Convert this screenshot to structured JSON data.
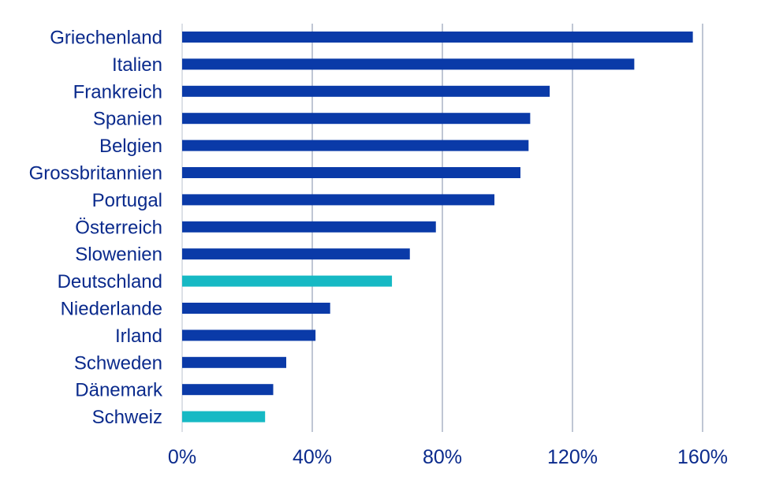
{
  "chart_data": {
    "type": "bar",
    "orientation": "horizontal",
    "title": "",
    "xlabel": "",
    "ylabel": "",
    "categories": [
      "Griechenland",
      "Italien",
      "Frankreich",
      "Spanien",
      "Belgien",
      "Grossbritannien",
      "Portugal",
      "Österreich",
      "Slowenien",
      "Deutschland",
      "Niederlande",
      "Irland",
      "Schweden",
      "Dänemark",
      "Schweiz"
    ],
    "values": [
      157,
      139,
      113,
      107,
      106.5,
      104,
      96,
      78,
      70,
      64.5,
      45.5,
      41,
      32,
      28,
      25.5
    ],
    "highlight": [
      "Deutschland",
      "Schweiz"
    ],
    "xlim": [
      0,
      170
    ],
    "xticks": [
      0,
      40,
      80,
      120,
      160
    ],
    "xtick_labels": [
      "0%",
      "40%",
      "80%",
      "120%",
      "160%"
    ],
    "grid": true,
    "legend": "none",
    "colors": {
      "bar": "#0a3aa8",
      "highlight": "#16b9c4",
      "text": "#0a2a8c",
      "grid": "#7f8ea8"
    }
  }
}
